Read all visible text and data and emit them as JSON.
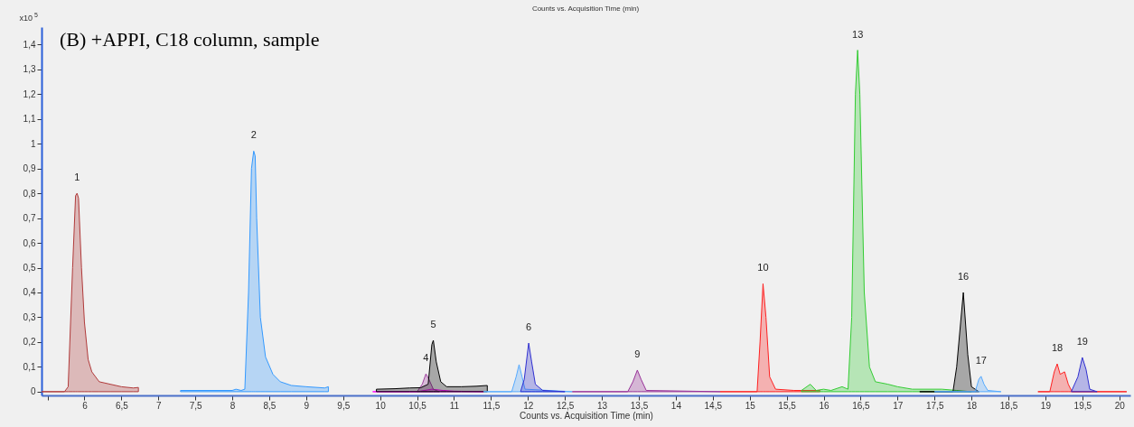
{
  "chart_data": {
    "type": "area",
    "title": "(B) +APPI, C18 column, sample",
    "xlabel": "Counts vs. Acquisition Time (min)",
    "annotations": [
      "Counts vs. Acquisition Time (min)",
      "x10$^{5}$",
      {
        "text": "1",
        "x": 5.9,
        "y": 0.8
      },
      {
        "text": "2",
        "x": 8.29,
        "y": 0.97
      },
      {
        "text": "4",
        "x": 10.62,
        "y": 0.072
      },
      {
        "text": "5",
        "x": 10.72,
        "y": 0.207
      },
      {
        "text": "6",
        "x": 12.01,
        "y": 0.196
      },
      {
        "text": "9",
        "x": 13.48,
        "y": 0.087
      },
      {
        "text": "10",
        "x": 15.18,
        "y": 0.435
      },
      {
        "text": "13",
        "x": 16.46,
        "y": 1.377
      },
      {
        "text": "16",
        "x": 17.89,
        "y": 0.4
      },
      {
        "text": "17",
        "x": 18.13,
        "y": 0.062
      },
      {
        "text": "18",
        "x": 19.16,
        "y": 0.112
      },
      {
        "text": "19",
        "x": 19.5,
        "y": 0.138
      }
    ],
    "series": [
      {
        "color": "#b03a3a",
        "x": [
          5.42,
          5.73,
          5.78,
          5.84,
          5.88,
          5.9,
          5.92,
          5.96,
          6.0,
          6.05,
          6.1,
          6.2,
          6.35,
          6.5,
          6.66,
          6.73
        ],
        "values": [
          0,
          0,
          0.02,
          0.5,
          0.79,
          0.8,
          0.78,
          0.5,
          0.28,
          0.13,
          0.08,
          0.04,
          0.03,
          0.02,
          0.015,
          0.017
        ]
      },
      {
        "color": "#3399ff",
        "x": [
          7.3,
          8.0,
          8.05,
          8.12,
          8.17,
          8.22,
          8.26,
          8.29,
          8.31,
          8.33,
          8.38,
          8.45,
          8.55,
          8.65,
          8.8,
          9.0,
          9.25,
          9.3
        ],
        "values": [
          0.005,
          0.005,
          0.01,
          0.005,
          0.01,
          0.4,
          0.9,
          0.97,
          0.95,
          0.7,
          0.3,
          0.14,
          0.07,
          0.04,
          0.025,
          0.02,
          0.015,
          0.02
        ]
      },
      {
        "color": "#ff00ff",
        "x": [
          9.9,
          10.5,
          10.6,
          10.7,
          10.85,
          11.0,
          11.4
        ],
        "values": [
          0,
          0,
          0.005,
          0.01,
          0.005,
          0.002,
          0
        ]
      },
      {
        "color": "#a040a0",
        "x": [
          10.5,
          10.57,
          10.62,
          10.66,
          10.72,
          10.8
        ],
        "values": [
          0,
          0.03,
          0.072,
          0.05,
          0.01,
          0
        ]
      },
      {
        "color": "#000000",
        "x": [
          9.95,
          10.2,
          10.4,
          10.55,
          10.65,
          10.7,
          10.72,
          10.76,
          10.82,
          10.9,
          11.1,
          11.3,
          11.45
        ],
        "values": [
          0.01,
          0.012,
          0.015,
          0.016,
          0.03,
          0.19,
          0.207,
          0.12,
          0.04,
          0.02,
          0.02,
          0.022,
          0.025
        ]
      },
      {
        "color": "#55aaff",
        "x": [
          11.4,
          11.78,
          11.84,
          11.88,
          11.92,
          11.96,
          12.6
        ],
        "values": [
          0,
          0,
          0.06,
          0.109,
          0.06,
          0.01,
          0
        ]
      },
      {
        "color": "#3030d0",
        "x": [
          11.9,
          11.95,
          12.01,
          12.05,
          12.1,
          12.2,
          12.5
        ],
        "values": [
          0,
          0.05,
          0.196,
          0.12,
          0.03,
          0.005,
          0
        ]
      },
      {
        "color": "#993399",
        "x": [
          12.6,
          13.35,
          13.42,
          13.48,
          13.53,
          13.6,
          14.6
        ],
        "values": [
          0,
          0,
          0.04,
          0.087,
          0.05,
          0.005,
          0
        ]
      },
      {
        "color": "#ff2020",
        "x": [
          14.6,
          15.1,
          15.14,
          15.18,
          15.22,
          15.27,
          15.35,
          15.6,
          15.95
        ],
        "values": [
          0,
          0,
          0.2,
          0.435,
          0.3,
          0.06,
          0.01,
          0.005,
          0.005
        ]
      },
      {
        "color": "#33cc33",
        "x": [
          15.7,
          15.82,
          15.9,
          16.0,
          16.1,
          16.25,
          16.33,
          16.38,
          16.43,
          16.46,
          16.49,
          16.55,
          16.62,
          16.7,
          16.87,
          17.0,
          17.2,
          17.6,
          17.8,
          18.0
        ],
        "values": [
          0.005,
          0.03,
          0.005,
          0.01,
          0.005,
          0.02,
          0.01,
          0.3,
          1.2,
          1.377,
          1.2,
          0.4,
          0.1,
          0.04,
          0.03,
          0.02,
          0.01,
          0.01,
          0.005,
          0
        ]
      },
      {
        "color": "#000000",
        "x": [
          17.3,
          17.75,
          17.8,
          17.89,
          17.95,
          18.0,
          18.1
        ],
        "values": [
          0,
          0,
          0.1,
          0.4,
          0.15,
          0.02,
          0
        ]
      },
      {
        "color": "#55aaff",
        "x": [
          17.5,
          18.05,
          18.1,
          18.13,
          18.17,
          18.22,
          18.4
        ],
        "values": [
          0,
          0,
          0.05,
          0.062,
          0.03,
          0.005,
          0
        ]
      },
      {
        "color": "#ff2020",
        "x": [
          18.9,
          19.06,
          19.12,
          19.16,
          19.2,
          19.26,
          19.31,
          19.36,
          20.1
        ],
        "values": [
          0,
          0,
          0.08,
          0.112,
          0.07,
          0.08,
          0.03,
          0,
          0
        ]
      },
      {
        "color": "#3030d0",
        "x": [
          19.35,
          19.44,
          19.5,
          19.55,
          19.6,
          19.7
        ],
        "values": [
          0,
          0.06,
          0.138,
          0.09,
          0.01,
          0
        ]
      }
    ],
    "xlim": [
      5.42,
      20.15
    ],
    "xticks": [
      {
        "value": 5.5,
        "label": null
      },
      6,
      {
        "value": 6.5,
        "label": "6,5"
      },
      7,
      {
        "value": 7.5,
        "label": "7,5"
      },
      8,
      {
        "value": 8.5,
        "label": "8,5"
      },
      9,
      {
        "value": 9.5,
        "label": "9,5"
      },
      10,
      {
        "value": 10.5,
        "label": "10,5"
      },
      11,
      {
        "value": 11.5,
        "label": "11,5"
      },
      12,
      {
        "value": 12.5,
        "label": "12,5"
      },
      13,
      {
        "value": 13.5,
        "label": "13,5"
      },
      14,
      {
        "value": 14.5,
        "label": "14,5"
      },
      15,
      {
        "value": 15.5,
        "label": "15,5"
      },
      16,
      {
        "value": 16.5,
        "label": "16,5"
      },
      17,
      {
        "value": 17.5,
        "label": "17,5"
      },
      18,
      {
        "value": 18.5,
        "label": "18,5"
      },
      19,
      {
        "value": 19.5,
        "label": "19,5"
      },
      20
    ],
    "ylim": [
      -0.015,
      1.47
    ],
    "yticks": [
      0,
      {
        "value": 0.1,
        "label": "0,1"
      },
      {
        "value": 0.2,
        "label": "0,2"
      },
      {
        "value": 0.3,
        "label": "0,3"
      },
      {
        "value": 0.4,
        "label": "0,4"
      },
      {
        "value": 0.5,
        "label": "0,5"
      },
      {
        "value": 0.6,
        "label": "0,6"
      },
      {
        "value": 0.7,
        "label": "0,7"
      },
      {
        "value": 0.8,
        "label": "0,8"
      },
      {
        "value": 0.9,
        "label": "0,9"
      },
      1,
      {
        "value": 1.1,
        "label": "1,1"
      },
      {
        "value": 1.2,
        "label": "1,2"
      },
      {
        "value": 1.3,
        "label": "1,3"
      },
      {
        "value": 1.4,
        "label": "1,4"
      }
    ],
    "grid": false,
    "legend": false
  }
}
